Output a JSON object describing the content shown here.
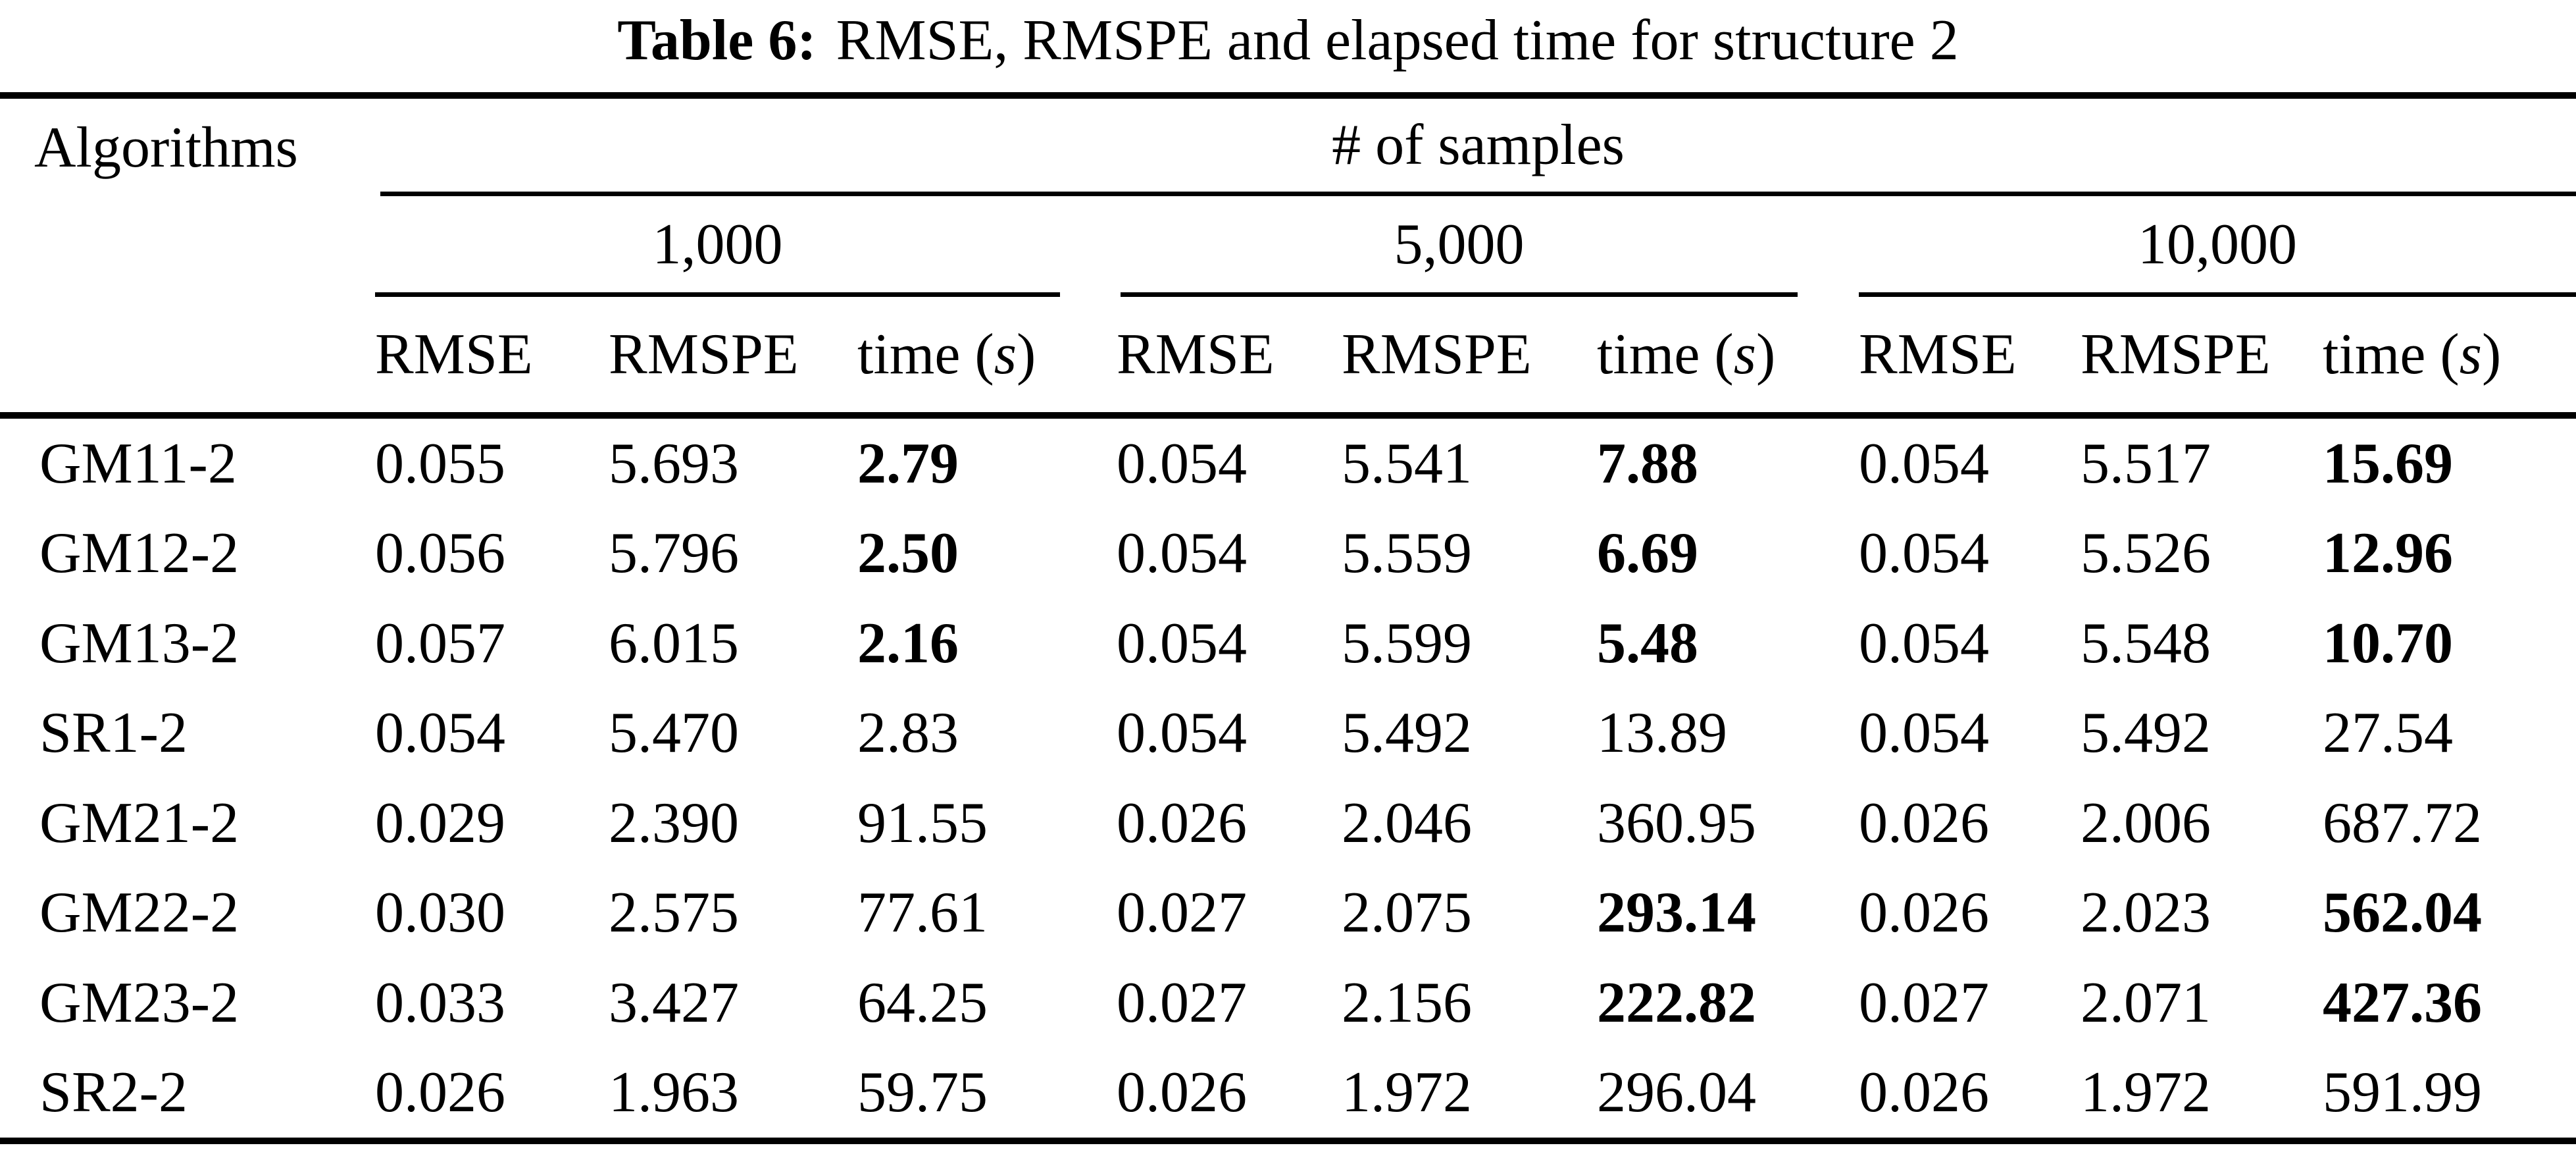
{
  "title": {
    "label": "Table 6:",
    "text": "RMSE, RMSPE and elapsed time for structure 2"
  },
  "header": {
    "algorithms": "Algorithms",
    "samples": "# of samples",
    "groups": [
      "1,000",
      "5,000",
      "10,000"
    ],
    "sub": {
      "rmse": "RMSE",
      "rmspe": "RMSPE",
      "time_prefix": "time (",
      "time_italic": "s",
      "time_suffix": ")"
    }
  },
  "rows": [
    {
      "name": "GM11-2",
      "values": [
        "0.055",
        "5.693",
        "2.79",
        "0.054",
        "5.541",
        "7.88",
        "0.054",
        "5.517",
        "15.69"
      ],
      "bold": [
        false,
        false,
        true,
        false,
        false,
        true,
        false,
        false,
        true
      ]
    },
    {
      "name": "GM12-2",
      "values": [
        "0.056",
        "5.796",
        "2.50",
        "0.054",
        "5.559",
        "6.69",
        "0.054",
        "5.526",
        "12.96"
      ],
      "bold": [
        false,
        false,
        true,
        false,
        false,
        true,
        false,
        false,
        true
      ]
    },
    {
      "name": "GM13-2",
      "values": [
        "0.057",
        "6.015",
        "2.16",
        "0.054",
        "5.599",
        "5.48",
        "0.054",
        "5.548",
        "10.70"
      ],
      "bold": [
        false,
        false,
        true,
        false,
        false,
        true,
        false,
        false,
        true
      ]
    },
    {
      "name": "SR1-2",
      "values": [
        "0.054",
        "5.470",
        "2.83",
        "0.054",
        "5.492",
        "13.89",
        "0.054",
        "5.492",
        "27.54"
      ],
      "bold": [
        false,
        false,
        false,
        false,
        false,
        false,
        false,
        false,
        false
      ]
    },
    {
      "name": "GM21-2",
      "values": [
        "0.029",
        "2.390",
        "91.55",
        "0.026",
        "2.046",
        "360.95",
        "0.026",
        "2.006",
        "687.72"
      ],
      "bold": [
        false,
        false,
        false,
        false,
        false,
        false,
        false,
        false,
        false
      ]
    },
    {
      "name": "GM22-2",
      "values": [
        "0.030",
        "2.575",
        "77.61",
        "0.027",
        "2.075",
        "293.14",
        "0.026",
        "2.023",
        "562.04"
      ],
      "bold": [
        false,
        false,
        false,
        false,
        false,
        true,
        false,
        false,
        true
      ]
    },
    {
      "name": "GM23-2",
      "values": [
        "0.033",
        "3.427",
        "64.25",
        "0.027",
        "2.156",
        "222.82",
        "0.027",
        "2.071",
        "427.36"
      ],
      "bold": [
        false,
        false,
        false,
        false,
        false,
        true,
        false,
        false,
        true
      ]
    },
    {
      "name": "SR2-2",
      "values": [
        "0.026",
        "1.963",
        "59.75",
        "0.026",
        "1.972",
        "296.04",
        "0.026",
        "1.972",
        "591.99"
      ],
      "bold": [
        false,
        false,
        false,
        false,
        false,
        false,
        false,
        false,
        false
      ]
    }
  ],
  "colors": {
    "text": "#000000",
    "background": "#ffffff",
    "rule": "#000000"
  }
}
